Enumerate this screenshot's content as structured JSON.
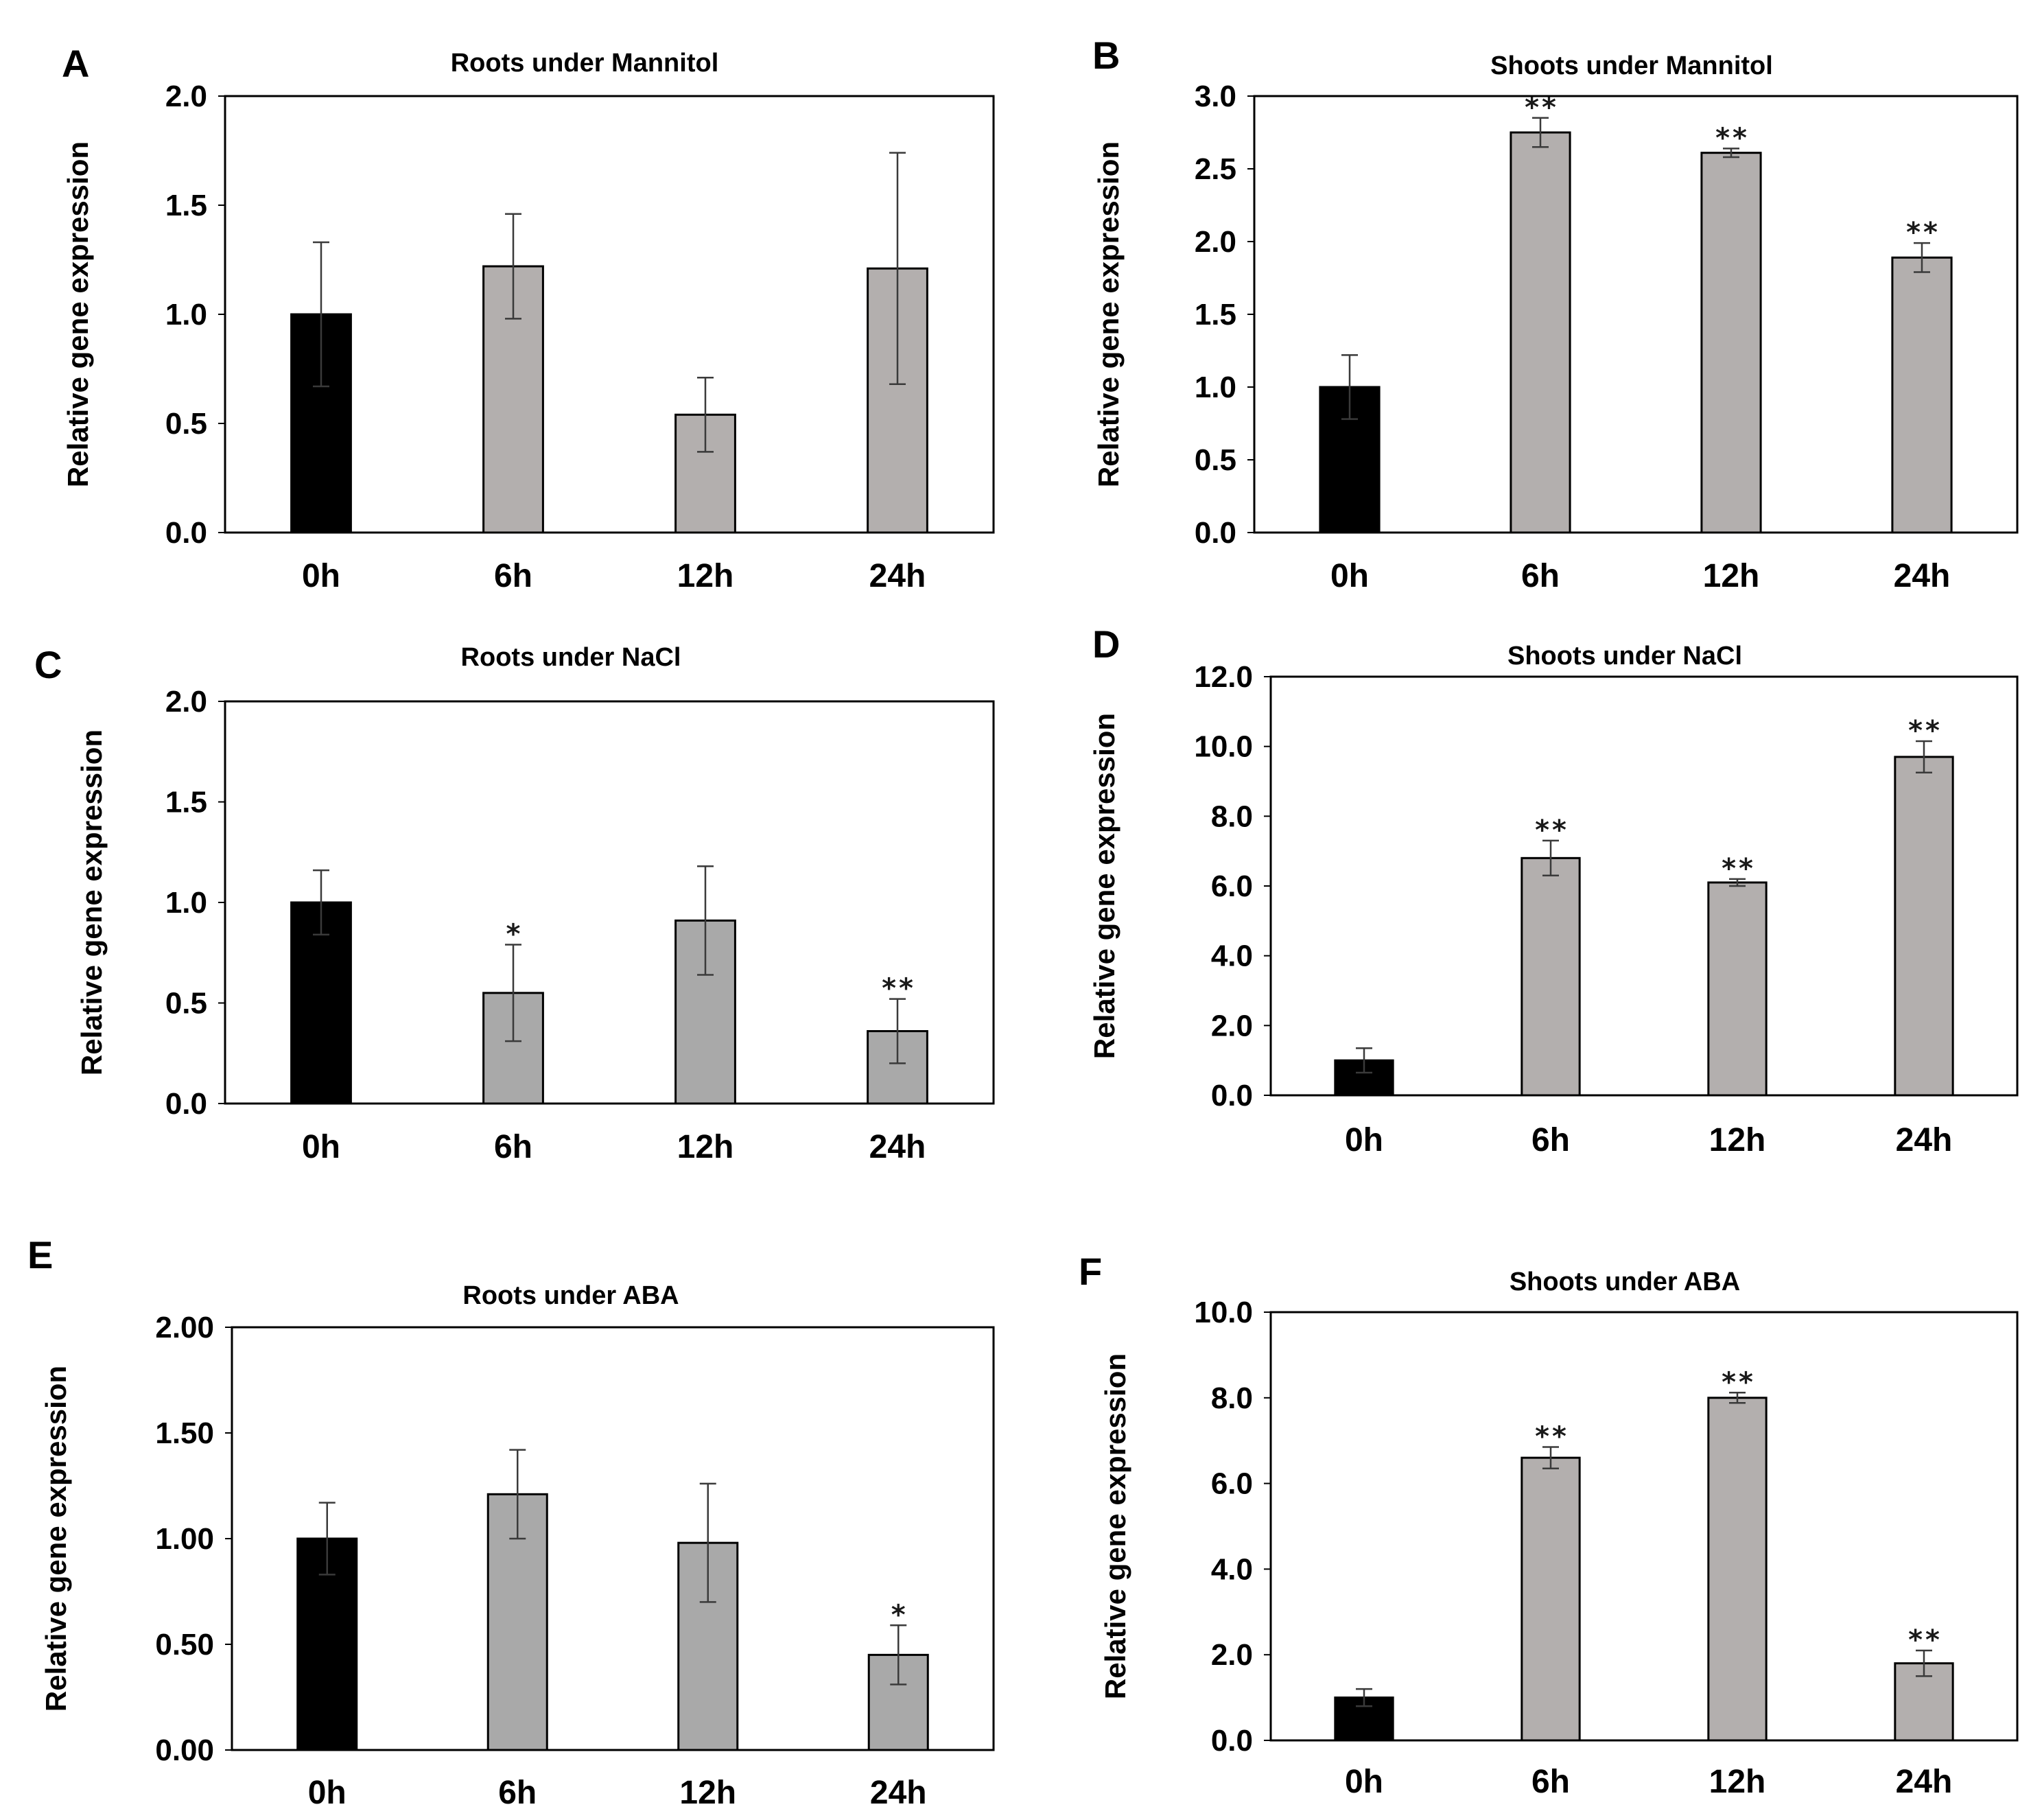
{
  "figure": {
    "description": "Relative gene expression panels"
  },
  "chart_data": [
    {
      "panel": "A",
      "type": "bar",
      "title": "Roots under Mannitol",
      "ylabel": "Relative gene expression",
      "xlabel": "",
      "categories": [
        "0h",
        "6h",
        "12h",
        "24h"
      ],
      "values": [
        1.0,
        1.22,
        0.54,
        1.21
      ],
      "errors": [
        0.33,
        0.24,
        0.17,
        0.53
      ],
      "significance": [
        "",
        "",
        "",
        ""
      ],
      "ylim": [
        0,
        2.0
      ],
      "yticks": [
        "0.0",
        "0.5",
        "1.0",
        "1.5",
        "2.0"
      ],
      "colors": [
        "#000000",
        "#b3afae",
        "#b3afae",
        "#b3afae"
      ]
    },
    {
      "panel": "B",
      "type": "bar",
      "title": "Shoots under Mannitol",
      "ylabel": "Relative gene expression",
      "xlabel": "",
      "categories": [
        "0h",
        "6h",
        "12h",
        "24h"
      ],
      "values": [
        1.0,
        2.75,
        2.61,
        1.89
      ],
      "errors": [
        0.22,
        0.1,
        0.03,
        0.1
      ],
      "significance": [
        "",
        "**",
        "**",
        "**"
      ],
      "ylim": [
        0,
        3.0
      ],
      "yticks": [
        "0.0",
        "0.5",
        "1.0",
        "1.5",
        "2.0",
        "2.5",
        "3.0"
      ],
      "colors": [
        "#000000",
        "#b3afae",
        "#b3afae",
        "#b3afae"
      ]
    },
    {
      "panel": "C",
      "type": "bar",
      "title": "Roots under NaCl",
      "ylabel": "Relative gene expression",
      "xlabel": "",
      "categories": [
        "0h",
        "6h",
        "12h",
        "24h"
      ],
      "values": [
        1.0,
        0.55,
        0.91,
        0.36
      ],
      "errors": [
        0.16,
        0.24,
        0.27,
        0.16
      ],
      "significance": [
        "",
        "*",
        "",
        "**"
      ],
      "ylim": [
        0,
        2.0
      ],
      "yticks": [
        "0.0",
        "0.5",
        "1.0",
        "1.5",
        "2.0"
      ],
      "colors": [
        "#000000",
        "#a9a9a9",
        "#a9a9a9",
        "#a9a9a9"
      ]
    },
    {
      "panel": "D",
      "type": "bar",
      "title": "Shoots under NaCl",
      "ylabel": "Relative gene expression",
      "xlabel": "",
      "categories": [
        "0h",
        "6h",
        "12h",
        "24h"
      ],
      "values": [
        1.0,
        6.8,
        6.1,
        9.7
      ],
      "errors": [
        0.35,
        0.5,
        0.1,
        0.45
      ],
      "significance": [
        "",
        "**",
        "**",
        "**"
      ],
      "ylim": [
        0,
        12.0
      ],
      "yticks": [
        "0.0",
        "2.0",
        "4.0",
        "6.0",
        "8.0",
        "10.0",
        "12.0"
      ],
      "colors": [
        "#000000",
        "#b3afae",
        "#b3afae",
        "#b3afae"
      ]
    },
    {
      "panel": "E",
      "type": "bar",
      "title": "Roots under ABA",
      "ylabel": "Relative gene expression",
      "xlabel": "",
      "categories": [
        "0h",
        "6h",
        "12h",
        "24h"
      ],
      "values": [
        1.0,
        1.21,
        0.98,
        0.45
      ],
      "errors": [
        0.17,
        0.21,
        0.28,
        0.14
      ],
      "significance": [
        "",
        "",
        "",
        "*"
      ],
      "ylim": [
        0,
        2.0
      ],
      "yticks": [
        "0.00",
        "0.50",
        "1.00",
        "1.50",
        "2.00"
      ],
      "colors": [
        "#000000",
        "#a9a9a9",
        "#a9a9a9",
        "#a9a9a9"
      ]
    },
    {
      "panel": "F",
      "type": "bar",
      "title": "Shoots under ABA",
      "ylabel": "Relative gene expression",
      "xlabel": "",
      "categories": [
        "0h",
        "6h",
        "12h",
        "24h"
      ],
      "values": [
        1.0,
        6.6,
        8.0,
        1.8
      ],
      "errors": [
        0.2,
        0.25,
        0.12,
        0.3
      ],
      "significance": [
        "",
        "**",
        "**",
        "**"
      ],
      "ylim": [
        0,
        10.0
      ],
      "yticks": [
        "0.0",
        "2.0",
        "4.0",
        "6.0",
        "8.0",
        "10.0"
      ],
      "colors": [
        "#000000",
        "#b3afae",
        "#b3afae",
        "#b3afae"
      ]
    }
  ]
}
